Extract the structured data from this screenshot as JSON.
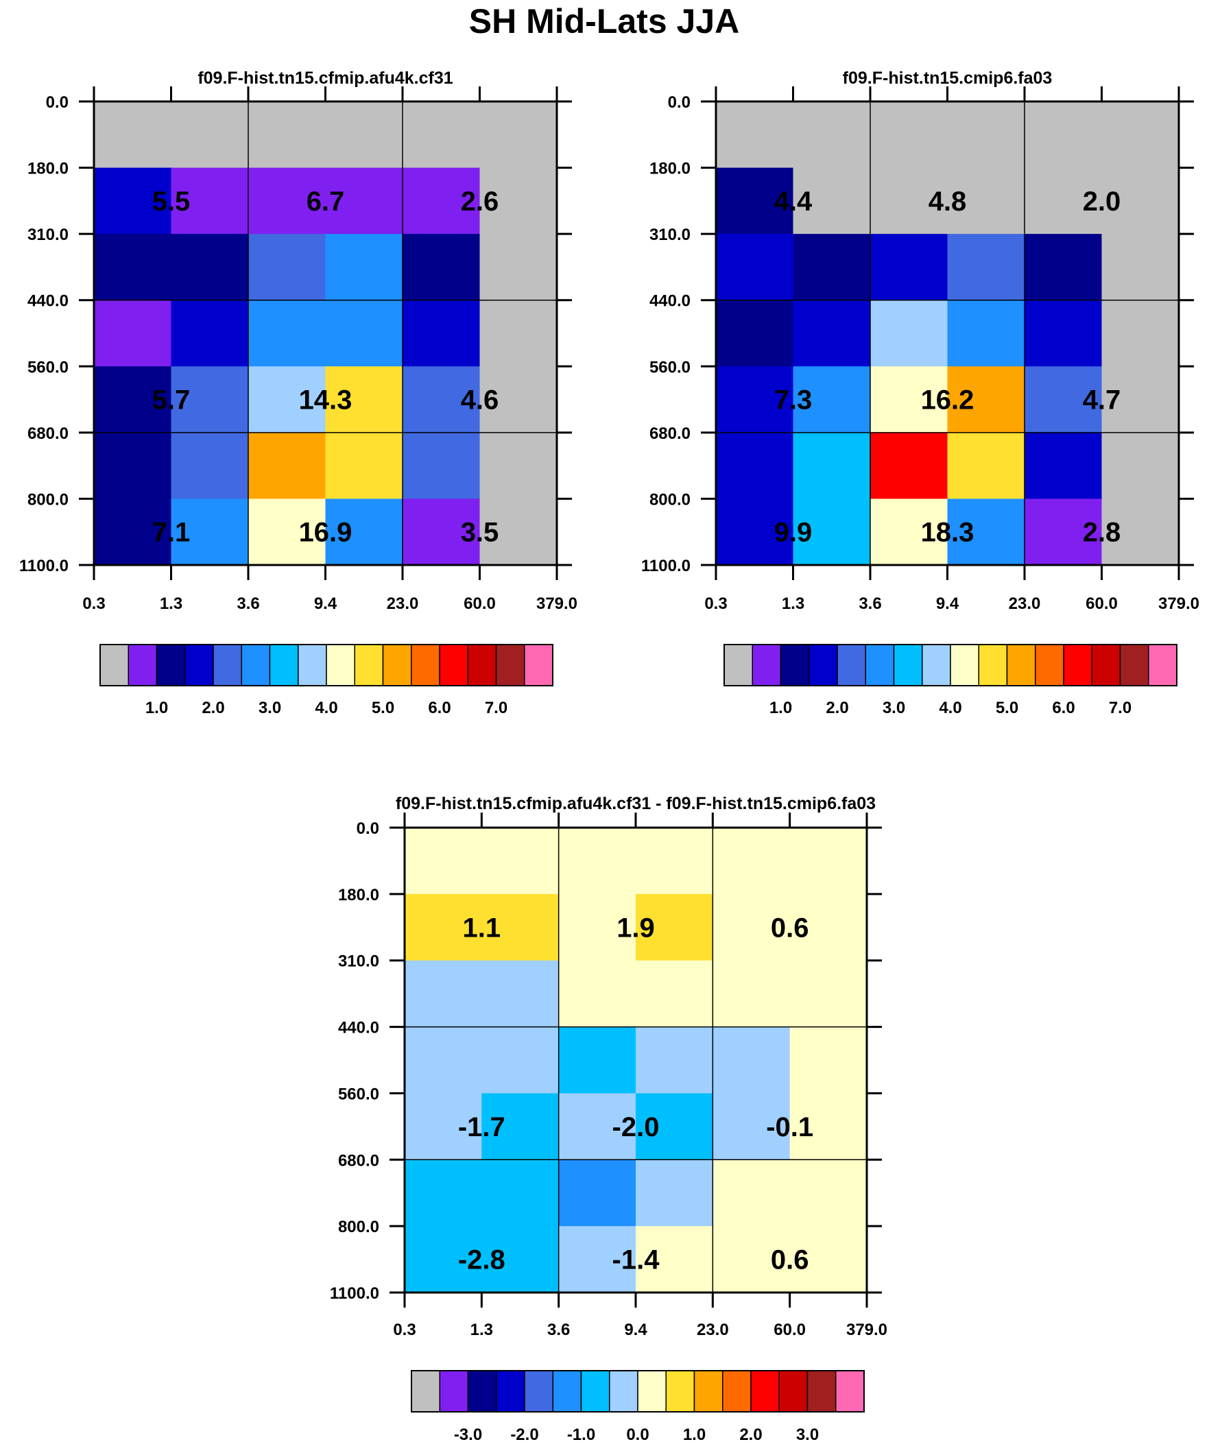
{
  "figure_title": "SH Mid-Lats JJA",
  "colors": {
    "palette": [
      "#c0c0c0",
      "#8020f0",
      "#00008b",
      "#0000cd",
      "#4169e1",
      "#1e90ff",
      "#00bfff",
      "#a0d0ff",
      "#ffffc8",
      "#ffe030",
      "#ffa500",
      "#ff6a00",
      "#ff0000",
      "#cd0000",
      "#a02020",
      "#ff69b4"
    ]
  },
  "chart_data": [
    {
      "type": "heatmap",
      "title": "f09.F-hist.tn15.cfmip.afu4k.cf31",
      "x_tick_labels": [
        "0.3",
        "1.3",
        "3.6",
        "9.4",
        "23.0",
        "60.0",
        "379.0"
      ],
      "y_tick_labels": [
        "0.0",
        "180.0",
        "310.0",
        "440.0",
        "560.0",
        "680.0",
        "800.0",
        "1100.0"
      ],
      "cell_color_index": [
        [
          0,
          0,
          0,
          0,
          0,
          0
        ],
        [
          3,
          1,
          1,
          1,
          1,
          0
        ],
        [
          2,
          2,
          4,
          5,
          2,
          0
        ],
        [
          1,
          3,
          5,
          5,
          3,
          0
        ],
        [
          2,
          4,
          7,
          9,
          4,
          0
        ],
        [
          2,
          4,
          10,
          9,
          4,
          0
        ],
        [
          2,
          5,
          8,
          5,
          1,
          0
        ]
      ],
      "block_labels": [
        {
          "text": "5.5",
          "col_band": 0,
          "row": 1
        },
        {
          "text": "6.7",
          "col_band": 1,
          "row": 1
        },
        {
          "text": "2.6",
          "col_band": 2,
          "row": 1
        },
        {
          "text": "5.7",
          "col_band": 0,
          "row": 4
        },
        {
          "text": "14.3",
          "col_band": 1,
          "row": 4
        },
        {
          "text": "4.6",
          "col_band": 2,
          "row": 4
        },
        {
          "text": "7.1",
          "col_band": 0,
          "row": 6
        },
        {
          "text": "16.9",
          "col_band": 1,
          "row": 6
        },
        {
          "text": "3.5",
          "col_band": 2,
          "row": 6
        }
      ],
      "legend": {
        "labels": [
          "1.0",
          "2.0",
          "3.0",
          "4.0",
          "5.0",
          "6.0",
          "7.0"
        ]
      }
    },
    {
      "type": "heatmap",
      "title": "f09.F-hist.tn15.cmip6.fa03",
      "x_tick_labels": [
        "0.3",
        "1.3",
        "3.6",
        "9.4",
        "23.0",
        "60.0",
        "379.0"
      ],
      "y_tick_labels": [
        "0.0",
        "180.0",
        "310.0",
        "440.0",
        "560.0",
        "680.0",
        "800.0",
        "1100.0"
      ],
      "cell_color_index": [
        [
          0,
          0,
          0,
          0,
          0,
          0
        ],
        [
          2,
          0,
          0,
          0,
          0,
          0
        ],
        [
          3,
          2,
          3,
          4,
          2,
          0
        ],
        [
          2,
          3,
          7,
          5,
          3,
          0
        ],
        [
          3,
          5,
          8,
          10,
          4,
          0
        ],
        [
          3,
          6,
          12,
          9,
          3,
          0
        ],
        [
          3,
          6,
          8,
          5,
          1,
          0
        ]
      ],
      "block_labels": [
        {
          "text": "4.4",
          "col_band": 0,
          "row": 1
        },
        {
          "text": "4.8",
          "col_band": 1,
          "row": 1
        },
        {
          "text": "2.0",
          "col_band": 2,
          "row": 1
        },
        {
          "text": "7.3",
          "col_band": 0,
          "row": 4
        },
        {
          "text": "16.2",
          "col_band": 1,
          "row": 4
        },
        {
          "text": "4.7",
          "col_band": 2,
          "row": 4
        },
        {
          "text": "9.9",
          "col_band": 0,
          "row": 6
        },
        {
          "text": "18.3",
          "col_band": 1,
          "row": 6
        },
        {
          "text": "2.8",
          "col_band": 2,
          "row": 6
        }
      ],
      "legend": {
        "labels": [
          "1.0",
          "2.0",
          "3.0",
          "4.0",
          "5.0",
          "6.0",
          "7.0"
        ]
      }
    },
    {
      "type": "heatmap",
      "title": "f09.F-hist.tn15.cfmip.afu4k.cf31 - f09.F-hist.tn15.cmip6.fa03",
      "x_tick_labels": [
        "0.3",
        "1.3",
        "3.6",
        "9.4",
        "23.0",
        "60.0",
        "379.0"
      ],
      "y_tick_labels": [
        "0.0",
        "180.0",
        "310.0",
        "440.0",
        "560.0",
        "680.0",
        "800.0",
        "1100.0"
      ],
      "cell_color_index": [
        [
          8,
          8,
          8,
          8,
          8,
          8
        ],
        [
          9,
          9,
          8,
          9,
          8,
          8
        ],
        [
          7,
          7,
          8,
          8,
          8,
          8
        ],
        [
          7,
          7,
          6,
          7,
          7,
          8
        ],
        [
          7,
          6,
          7,
          6,
          7,
          8
        ],
        [
          6,
          6,
          5,
          7,
          8,
          8
        ],
        [
          6,
          6,
          7,
          8,
          8,
          8
        ]
      ],
      "block_labels": [
        {
          "text": "1.1",
          "col_band": 0,
          "row": 1
        },
        {
          "text": "1.9",
          "col_band": 1,
          "row": 1
        },
        {
          "text": "0.6",
          "col_band": 2,
          "row": 1
        },
        {
          "text": "-1.7",
          "col_band": 0,
          "row": 4
        },
        {
          "text": "-2.0",
          "col_band": 1,
          "row": 4
        },
        {
          "text": "-0.1",
          "col_band": 2,
          "row": 4
        },
        {
          "text": "-2.8",
          "col_band": 0,
          "row": 6
        },
        {
          "text": "-1.4",
          "col_band": 1,
          "row": 6
        },
        {
          "text": "0.6",
          "col_band": 2,
          "row": 6
        }
      ],
      "legend": {
        "labels": [
          "-3.0",
          "-2.0",
          "-1.0",
          "0.0",
          "1.0",
          "2.0",
          "3.0"
        ]
      }
    }
  ]
}
